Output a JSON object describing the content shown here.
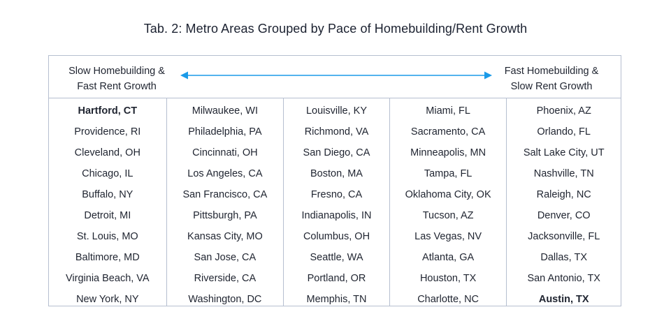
{
  "title": "Tab. 2: Metro Areas Grouped by Pace of Homebuilding/Rent Growth",
  "header": {
    "left_line1": "Slow Homebuilding &",
    "left_line2": "Fast Rent Growth",
    "right_line1": "Fast Homebuilding &",
    "right_line2": "Slow Rent Growth",
    "arrow_color": "#1a9ae8"
  },
  "columns": [
    [
      "Hartford, CT",
      "Providence, RI",
      "Cleveland, OH",
      "Chicago, IL",
      "Buffalo, NY",
      "Detroit, MI",
      "St. Louis, MO",
      "Baltimore, MD",
      "Virginia Beach, VA",
      "New York, NY"
    ],
    [
      "Milwaukee, WI",
      "Philadelphia, PA",
      "Cincinnati, OH",
      "Los Angeles, CA",
      "San Francisco, CA",
      "Pittsburgh, PA",
      "Kansas City, MO",
      "San Jose, CA",
      "Riverside, CA",
      "Washington, DC"
    ],
    [
      "Louisville, KY",
      "Richmond, VA",
      "San Diego, CA",
      "Boston, MA",
      "Fresno, CA",
      "Indianapolis, IN",
      "Columbus, OH",
      "Seattle, WA",
      "Portland, OR",
      "Memphis, TN"
    ],
    [
      "Miami, FL",
      "Sacramento, CA",
      "Minneapolis, MN",
      "Tampa, FL",
      "Oklahoma City, OK",
      "Tucson, AZ",
      "Las Vegas, NV",
      "Atlanta, GA",
      "Houston, TX",
      "Charlotte, NC"
    ],
    [
      "Phoenix, AZ",
      "Orlando, FL",
      "Salt Lake City, UT",
      "Nashville, TN",
      "Raleigh, NC",
      "Denver, CO",
      "Jacksonville, FL",
      "Dallas, TX",
      "San Antonio, TX",
      "Austin, TX"
    ]
  ],
  "highlighted": [
    "Hartford, CT",
    "Austin, TX"
  ]
}
